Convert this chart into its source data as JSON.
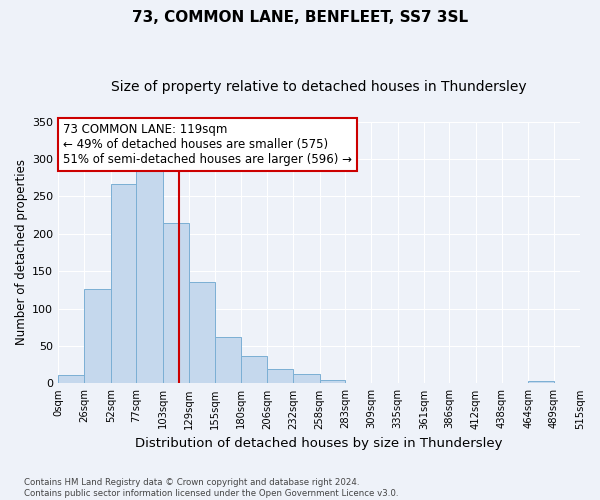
{
  "title": "73, COMMON LANE, BENFLEET, SS7 3SL",
  "subtitle": "Size of property relative to detached houses in Thundersley",
  "xlabel": "Distribution of detached houses by size in Thundersley",
  "ylabel": "Number of detached properties",
  "bin_edges": [
    0,
    26,
    52,
    77,
    103,
    129,
    155,
    180,
    206,
    232,
    258,
    283,
    309,
    335,
    361,
    386,
    412,
    438,
    464,
    489,
    515
  ],
  "bar_heights": [
    11,
    126,
    266,
    285,
    215,
    136,
    62,
    36,
    19,
    12,
    5,
    0,
    0,
    0,
    0,
    0,
    0,
    0,
    3,
    0
  ],
  "bar_color": "#c5d8ed",
  "bar_edge_color": "#7bafd4",
  "bar_edge_width": 0.7,
  "vline_x": 119,
  "vline_color": "#cc0000",
  "annotation_text": "73 COMMON LANE: 119sqm\n← 49% of detached houses are smaller (575)\n51% of semi-detached houses are larger (596) →",
  "annotation_box_color": "#ffffff",
  "annotation_box_edge_color": "#cc0000",
  "ylim": [
    0,
    350
  ],
  "yticks": [
    0,
    50,
    100,
    150,
    200,
    250,
    300,
    350
  ],
  "tick_labels": [
    "0sqm",
    "26sqm",
    "52sqm",
    "77sqm",
    "103sqm",
    "129sqm",
    "155sqm",
    "180sqm",
    "206sqm",
    "232sqm",
    "258sqm",
    "283sqm",
    "309sqm",
    "335sqm",
    "361sqm",
    "386sqm",
    "412sqm",
    "438sqm",
    "464sqm",
    "489sqm",
    "515sqm"
  ],
  "bg_color": "#eef2f9",
  "grid_color": "#ffffff",
  "footnote": "Contains HM Land Registry data © Crown copyright and database right 2024.\nContains public sector information licensed under the Open Government Licence v3.0.",
  "title_fontsize": 11,
  "subtitle_fontsize": 10,
  "xlabel_fontsize": 9.5,
  "ylabel_fontsize": 8.5,
  "annotation_fontsize": 8.5
}
